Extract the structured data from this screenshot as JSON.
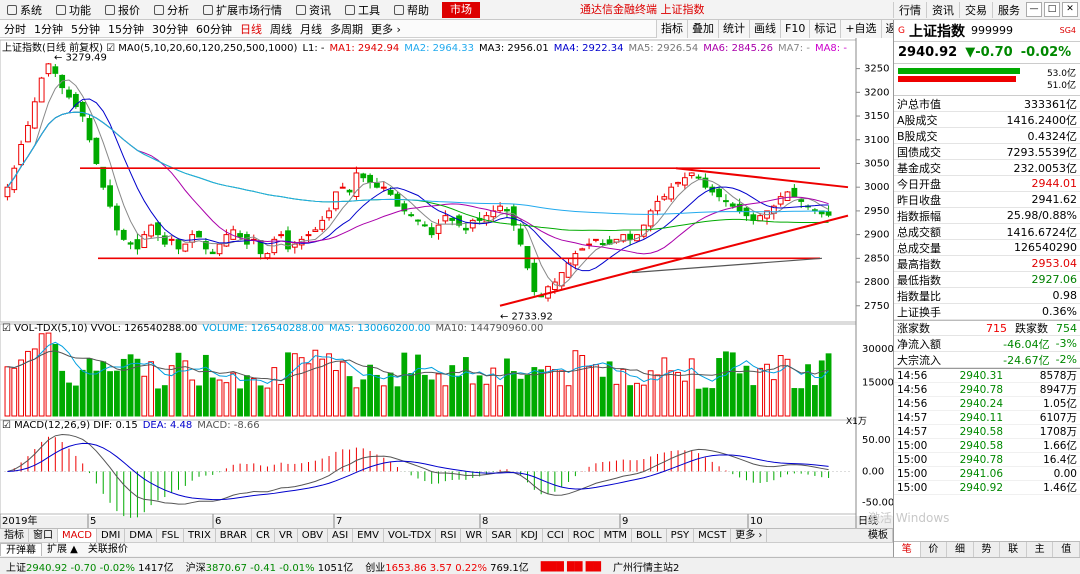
{
  "menu": [
    "系统",
    "功能",
    "报价",
    "分析",
    "扩展市场行情",
    "资讯",
    "工具",
    "帮助"
  ],
  "market_button": "市场",
  "app_title": "通达信金融终端  上证指数",
  "right_menu": [
    "行情",
    "资讯",
    "交易",
    "服务"
  ],
  "periods": [
    "分时",
    "1分钟",
    "5分钟",
    "15分钟",
    "30分钟",
    "60分钟",
    "日线",
    "周线",
    "月线",
    "多周期",
    "更多 ›"
  ],
  "active_period": "日线",
  "tool_buttons": [
    "指标",
    "叠加",
    "统计",
    "画线",
    "F10",
    "标记",
    "+自选",
    "返回"
  ],
  "main_info": {
    "prefix": "上证指数(日线 前复权) ☑ MA0(5,10,20,60,120,250,500,1000)",
    "items": [
      {
        "label": "L1: -",
        "color": "#000000"
      },
      {
        "label": "MA1: 2942.94",
        "color": "#e00000"
      },
      {
        "label": "MA2: 2964.33",
        "color": "#22aaee"
      },
      {
        "label": "MA3: 2956.01",
        "color": "#000000"
      },
      {
        "label": "MA4: 2922.34",
        "color": "#0000cc"
      },
      {
        "label": "MA5: 2926.54",
        "color": "#777777"
      },
      {
        "label": "MA6: 2845.26",
        "color": "#aa00aa"
      },
      {
        "label": "MA7: -",
        "color": "#888888"
      },
      {
        "label": "MA8: -",
        "color": "#cc00cc"
      }
    ]
  },
  "vol_info": {
    "prefix": "☑ VOL-TDX(5,10) VVOL: 126540288.00",
    "items": [
      {
        "label": "VOLUME: 126540288.00",
        "color": "#00a0e0"
      },
      {
        "label": "MA5: 130060200.00",
        "color": "#00a0e0"
      },
      {
        "label": "MA10: 144790960.00",
        "color": "#555555"
      }
    ]
  },
  "macd_info": {
    "prefix": "☑ MACD(12,26,9) DIF: 0.15",
    "items": [
      {
        "label": "DEA: 4.48",
        "color": "#0000cc"
      },
      {
        "label": "MACD: -8.66",
        "color": "#555555"
      }
    ]
  },
  "y_axis_main": [
    "3250",
    "3200",
    "3150",
    "3100",
    "3050",
    "3000",
    "2950",
    "2900",
    "2850",
    "2800",
    "2750"
  ],
  "y_axis_vol": [
    "30000",
    "15000"
  ],
  "vol_unit": "X1万",
  "y_axis_macd": [
    "50.00",
    "0.00",
    "-50.00"
  ],
  "x_axis_labels": [
    "2019年",
    "5",
    "6",
    "7",
    "8",
    "9",
    "10"
  ],
  "x_axis_right": "日线",
  "annotations": {
    "high": "3279.49",
    "low": "2733.92"
  },
  "chart_data": {
    "type": "candlestick",
    "ylim": [
      2720,
      3285
    ],
    "high": 3279.49,
    "low": 2733.92,
    "closes": [
      3000,
      3040,
      3090,
      3130,
      3180,
      3230,
      3260,
      3240,
      3210,
      3190,
      3170,
      3150,
      3100,
      3050,
      3000,
      2960,
      2910,
      2890,
      2880,
      2870,
      2900,
      2920,
      2900,
      2880,
      2890,
      2870,
      2880,
      2900,
      2895,
      2870,
      2860,
      2880,
      2900,
      2910,
      2895,
      2880,
      2890,
      2860,
      2860,
      2890,
      2900,
      2870,
      2880,
      2890,
      2900,
      2910,
      2930,
      2950,
      2990,
      3000,
      2990,
      3030,
      3020,
      3010,
      3000,
      3000,
      2985,
      2960,
      2950,
      2940,
      2930,
      2920,
      2900,
      2920,
      2940,
      2930,
      2920,
      2910,
      2930,
      2930,
      2940,
      2950,
      2960,
      2950,
      2920,
      2880,
      2830,
      2780,
      2770,
      2790,
      2800,
      2820,
      2840,
      2860,
      2870,
      2880,
      2890,
      2880,
      2880,
      2890,
      2900,
      2890,
      2900,
      2920,
      2950,
      2970,
      2980,
      3000,
      3010,
      3020,
      3030,
      3020,
      3000,
      2990,
      2980,
      2970,
      2960,
      2950,
      2940,
      2930,
      2940,
      2950,
      2960,
      2980,
      2990,
      2980,
      2970,
      2960,
      2950,
      2944,
      2941
    ],
    "volume_max": 35000,
    "macd_range": [
      -65,
      60
    ]
  },
  "quote": {
    "name": "上证指数",
    "code": "999999",
    "badge": "SG4",
    "price": "2940.92",
    "change": "▼-0.70",
    "pct": "-0.02%",
    "bar_pcts": [
      "53.0亿",
      "51.0亿"
    ],
    "rows": [
      {
        "k": "沪总市值",
        "v": "333361亿",
        "c": "#000000"
      },
      {
        "k": "A股成交",
        "v": "1416.2400亿",
        "c": "#000000"
      },
      {
        "k": "B股成交",
        "v": "0.4324亿",
        "c": "#000000"
      },
      {
        "k": "国债成交",
        "v": "7293.5539亿",
        "c": "#000000"
      },
      {
        "k": "基金成交",
        "v": "232.0053亿",
        "c": "#000000"
      },
      {
        "k": "今日开盘",
        "v": "2944.01",
        "c": "#e00000"
      },
      {
        "k": "昨日收盘",
        "v": "2941.62",
        "c": "#000000"
      },
      {
        "k": "指数振幅",
        "v": "25.98/0.88%",
        "c": "#000000"
      },
      {
        "k": "总成交额",
        "v": "1416.6724亿",
        "c": "#000000"
      },
      {
        "k": "总成交量",
        "v": "126540290",
        "c": "#000000"
      },
      {
        "k": "最高指数",
        "v": "2953.04",
        "c": "#e00000"
      },
      {
        "k": "最低指数",
        "v": "2927.06",
        "c": "#008000"
      },
      {
        "k": "指数量比",
        "v": "0.98",
        "c": "#000000"
      },
      {
        "k": "上证换手",
        "v": "0.36%",
        "c": "#000000"
      }
    ],
    "updown": {
      "up_label": "涨家数",
      "up": "715",
      "down_label": "跌家数",
      "down": "754"
    },
    "flows": [
      {
        "k": "净流入额",
        "v": "-46.04亿",
        "v2": "-3%"
      },
      {
        "k": "大宗流入",
        "v": "-24.67亿",
        "v2": "-2%"
      }
    ],
    "ticks": [
      {
        "t": "14:56",
        "p": "2940.31",
        "q": "8578万"
      },
      {
        "t": "14:56",
        "p": "2940.78",
        "q": "8947万"
      },
      {
        "t": "14:56",
        "p": "2940.24",
        "q": "1.05亿"
      },
      {
        "t": "14:57",
        "p": "2940.11",
        "q": "6107万"
      },
      {
        "t": "14:57",
        "p": "2940.58",
        "q": "1708万"
      },
      {
        "t": "15:00",
        "p": "2940.58",
        "q": "1.66亿"
      },
      {
        "t": "15:00",
        "p": "2940.78",
        "q": "16.4亿"
      },
      {
        "t": "15:00",
        "p": "2941.06",
        "q": "0.00"
      },
      {
        "t": "15:00",
        "p": "2940.92",
        "q": "1.46亿"
      }
    ],
    "bottom_tabs": [
      "笔",
      "价",
      "细",
      "势",
      "联",
      "主",
      "值"
    ]
  },
  "indicator_tabs": [
    "指标",
    "窗口",
    "MACD",
    "DMI",
    "DMA",
    "FSL",
    "TRIX",
    "BRAR",
    "CR",
    "VR",
    "OBV",
    "ASI",
    "EMV",
    "VOL-TDX",
    "RSI",
    "WR",
    "SAR",
    "KDJ",
    "CCI",
    "ROC",
    "MTM",
    "BOLL",
    "PSY",
    "MCST",
    "更多 ›"
  ],
  "active_indicator": "MACD",
  "indicator_right": "模板",
  "tabs2": [
    "开弹幕",
    "扩展 ▲",
    "关联报价"
  ],
  "status": [
    {
      "name": "上证",
      "price": "2940.92",
      "chg": "-0.70",
      "pct": "-0.02%",
      "amt": "1417亿"
    },
    {
      "name": "沪深",
      "price": "3870.67",
      "chg": "-0.41",
      "pct": "-0.01%",
      "amt": "1051亿"
    },
    {
      "name": "创业",
      "price": "1653.86",
      "chg": "3.57",
      "pct": "0.22%",
      "amt": "769.1亿"
    }
  ],
  "status_right": "广州行情主站2",
  "watermark": "激活 Windows"
}
